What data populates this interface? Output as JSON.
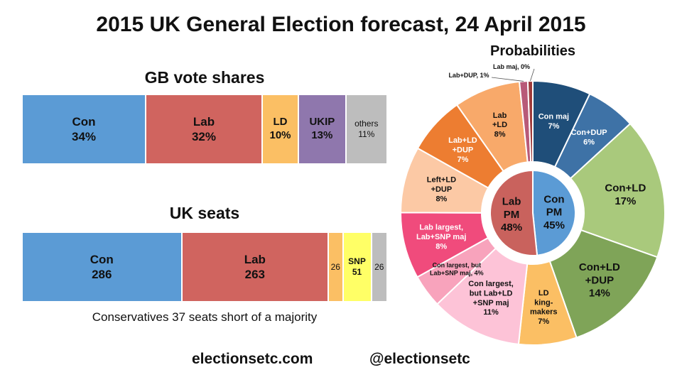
{
  "title": "2015 UK General Election forecast, 24 April 2015",
  "vote": {
    "title": "GB vote shares",
    "parties": [
      {
        "name": "Con",
        "share": 34,
        "label": "34%",
        "color": "#5b9bd5",
        "style": "big"
      },
      {
        "name": "Lab",
        "share": 32,
        "label": "32%",
        "color": "#d0645f",
        "style": "big"
      },
      {
        "name": "LD",
        "share": 10,
        "label": "10%",
        "color": "#fbbf64",
        "style": "mid"
      },
      {
        "name": "UKIP",
        "share": 13,
        "label": "13%",
        "color": "#8f77ad",
        "style": "mid"
      },
      {
        "name": "others",
        "share": 11,
        "label": "11%",
        "color": "#bdbdbd",
        "style": "small"
      }
    ]
  },
  "seats": {
    "title": "UK seats",
    "parties": [
      {
        "name": "Con",
        "seats": 286,
        "label": "286",
        "color": "#5b9bd5",
        "style": "big"
      },
      {
        "name": "Lab",
        "seats": 263,
        "label": "263",
        "color": "#d0645f",
        "style": "big"
      },
      {
        "name": "LD",
        "seats": 26,
        "label": "26",
        "color": "#fbbf64",
        "style": "small",
        "showName": false
      },
      {
        "name": "SNP",
        "seats": 51,
        "label": "51",
        "color": "#ffff66",
        "style": "smallbold",
        "showName": true
      },
      {
        "name": "others",
        "seats": 26,
        "label": "26",
        "color": "#bdbdbd",
        "style": "small",
        "showName": false
      }
    ],
    "note": "Conservatives 37 seats short of a majority"
  },
  "chart_data": {
    "type": "pie",
    "title": "Probabilities",
    "units": "percent",
    "inner": [
      {
        "label": "Con PM",
        "line1": "Con",
        "line2": "PM",
        "value": 45,
        "value_label": "45%",
        "color": "#5b9bd5"
      },
      {
        "label": "Lab PM",
        "line1": "Lab",
        "line2": "PM",
        "value": 48,
        "value_label": "48%",
        "color": "#c9625d"
      }
    ],
    "outer": [
      {
        "label": "Con maj",
        "value": 7,
        "value_label": "7%",
        "color": "#1f4e79"
      },
      {
        "label": "Con+DUP",
        "value": 6,
        "value_label": "6%",
        "color": "#3e72a6"
      },
      {
        "label": "Con+LD",
        "value": 17,
        "value_label": "17%",
        "color": "#a9c97c"
      },
      {
        "label": "Con+LD +DUP",
        "value": 14,
        "value_label": "14%",
        "color": "#7fa458"
      },
      {
        "label": "LD king- makers",
        "value": 7,
        "value_label": "7%",
        "color": "#fbbf64"
      },
      {
        "label": "Con largest, but Lab+LD +SNP maj",
        "value": 11,
        "value_label": "11%",
        "color": "#fdc3d7"
      },
      {
        "label": "Con largest, but Lab+SNP maj",
        "value": 4,
        "value_label": "4%",
        "color": "#f8a3bc"
      },
      {
        "label": "Lab largest, Lab+SNP maj",
        "value": 8,
        "value_label": "8%",
        "color": "#f04b7c"
      },
      {
        "label": "Left+LD +DUP",
        "value": 8,
        "value_label": "8%",
        "color": "#fcc9a5"
      },
      {
        "label": "Lab+LD +DUP",
        "value": 7,
        "value_label": "7%",
        "color": "#ed7d31"
      },
      {
        "label": "Lab +LD",
        "value": 8,
        "value_label": "8%",
        "color": "#f8a96a"
      },
      {
        "label": "Lab+DUP",
        "value": 1,
        "value_label": "1%",
        "color": "#b85a78"
      },
      {
        "label": "Lab maj",
        "value": 0,
        "value_label": "0%",
        "color": "#9e3b3b"
      }
    ]
  },
  "footer": {
    "site": "electionsetc.com",
    "handle": "@electionsetc"
  }
}
